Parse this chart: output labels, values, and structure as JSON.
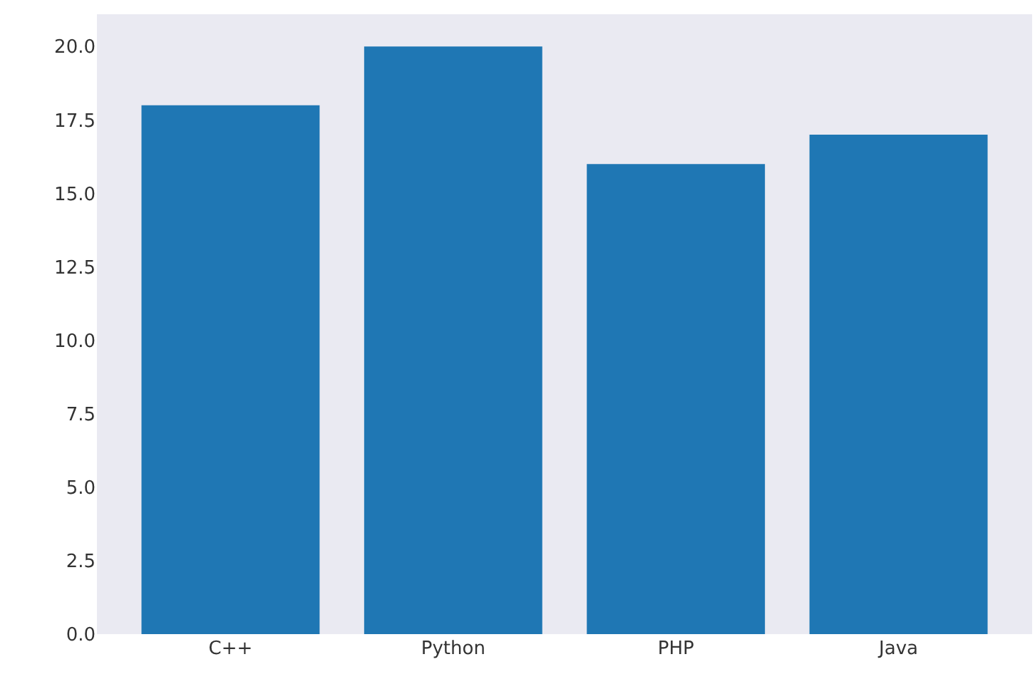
{
  "chart_data": {
    "type": "bar",
    "categories": [
      "C++",
      "Python",
      "PHP",
      "Java"
    ],
    "values": [
      18,
      20,
      16,
      17
    ],
    "color": "#1f77b4",
    "ylim": [
      0,
      21.1
    ],
    "yticks": [
      {
        "value": 0,
        "label": "0.0"
      },
      {
        "value": 2.5,
        "label": "2.5"
      },
      {
        "value": 5,
        "label": "5.0"
      },
      {
        "value": 7.5,
        "label": "7.5"
      },
      {
        "value": 10,
        "label": "10.0"
      },
      {
        "value": 12.5,
        "label": "12.5"
      },
      {
        "value": 15,
        "label": "15.0"
      },
      {
        "value": 17.5,
        "label": "17.5"
      },
      {
        "value": 20,
        "label": "20.0"
      }
    ],
    "grid": false
  }
}
